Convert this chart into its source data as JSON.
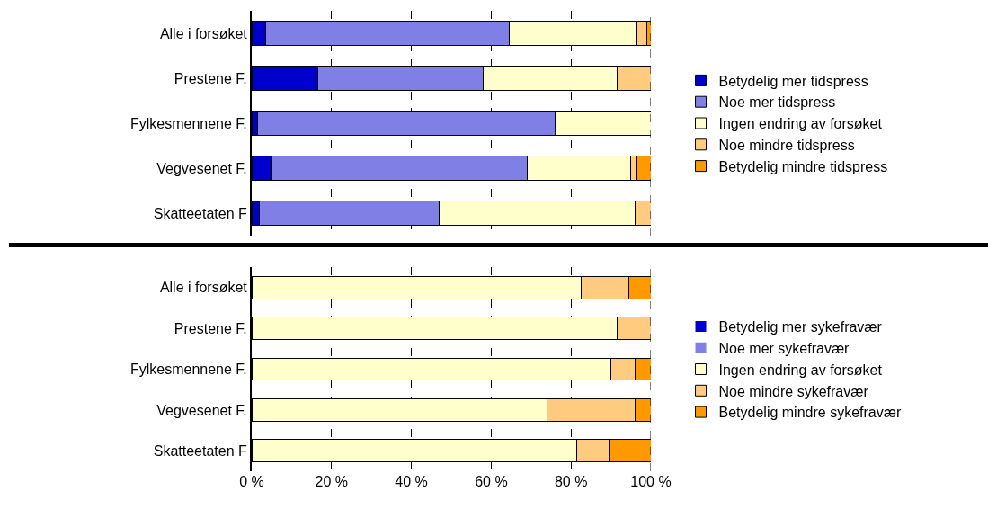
{
  "chart_data": [
    {
      "type": "bar",
      "orientation": "horizontal",
      "stacked": true,
      "categories": [
        "Alle i forsøket",
        "Prestene F.",
        "Fylkesmennene F.",
        "Vegvesenet F.",
        "Skatteetaten F"
      ],
      "series": [
        {
          "name": "Betydelig mer tidspress",
          "color": "#0000cc",
          "values": [
            3.5,
            16.5,
            1.5,
            5,
            2
          ]
        },
        {
          "name": "Noe mer tidspress",
          "color": "#7f7fe5",
          "values": [
            61,
            41.5,
            74.5,
            64,
            45
          ]
        },
        {
          "name": "Ingen endring av forsøket",
          "color": "#ffffcc",
          "values": [
            32,
            33.5,
            24,
            26,
            49
          ]
        },
        {
          "name": "Noe mindre tidspress",
          "color": "#ffcc7f",
          "values": [
            2.5,
            8.5,
            0,
            1.5,
            4
          ]
        },
        {
          "name": "Betydelig mindre tidspress",
          "color": "#ff9900",
          "values": [
            1,
            0,
            0,
            3.5,
            0
          ]
        }
      ],
      "xlim": [
        0,
        100
      ],
      "xticks": [
        {
          "value": 0,
          "label": null
        },
        {
          "value": 20,
          "label": null
        },
        {
          "value": 40,
          "label": null
        },
        {
          "value": 60,
          "label": null
        },
        {
          "value": 80,
          "label": null
        },
        {
          "value": 100,
          "label": null
        }
      ],
      "tick_labels": "y",
      "grid": "x",
      "legend": "right"
    },
    {
      "type": "bar",
      "orientation": "horizontal",
      "stacked": true,
      "categories": [
        "Alle i forsøket",
        "Prestene F.",
        "Fylkesmennene F.",
        "Vegvesenet F.",
        "Skatteetaten F"
      ],
      "series": [
        {
          "name": "Betydelig mer sykefravær",
          "color": "#0000cc",
          "values": [
            0,
            0,
            0,
            0,
            0
          ]
        },
        {
          "name": "Noe mer sykefravær",
          "color": "#7f7fe5",
          "values": [
            0,
            0,
            0,
            0,
            0
          ]
        },
        {
          "name": "Ingen endring av forsøket",
          "color": "#ffffcc",
          "values": [
            82.5,
            91.5,
            90,
            74,
            81.5
          ]
        },
        {
          "name": "Noe mindre sykefravær",
          "color": "#ffcc7f",
          "values": [
            12,
            8.5,
            6,
            22,
            8
          ]
        },
        {
          "name": "Betydelig mindre sykefravær",
          "color": "#ff9900",
          "values": [
            5.5,
            0,
            4,
            4,
            10.5
          ]
        }
      ],
      "xlim": [
        0,
        100
      ],
      "xticks": [
        {
          "value": 0,
          "label": "0 %"
        },
        {
          "value": 20,
          "label": "20 %"
        },
        {
          "value": 40,
          "label": "40 %"
        },
        {
          "value": 60,
          "label": "60 %"
        },
        {
          "value": 80,
          "label": "80 %"
        },
        {
          "value": 100,
          "label": "100 %"
        }
      ],
      "grid": "x",
      "legend": "right"
    }
  ]
}
